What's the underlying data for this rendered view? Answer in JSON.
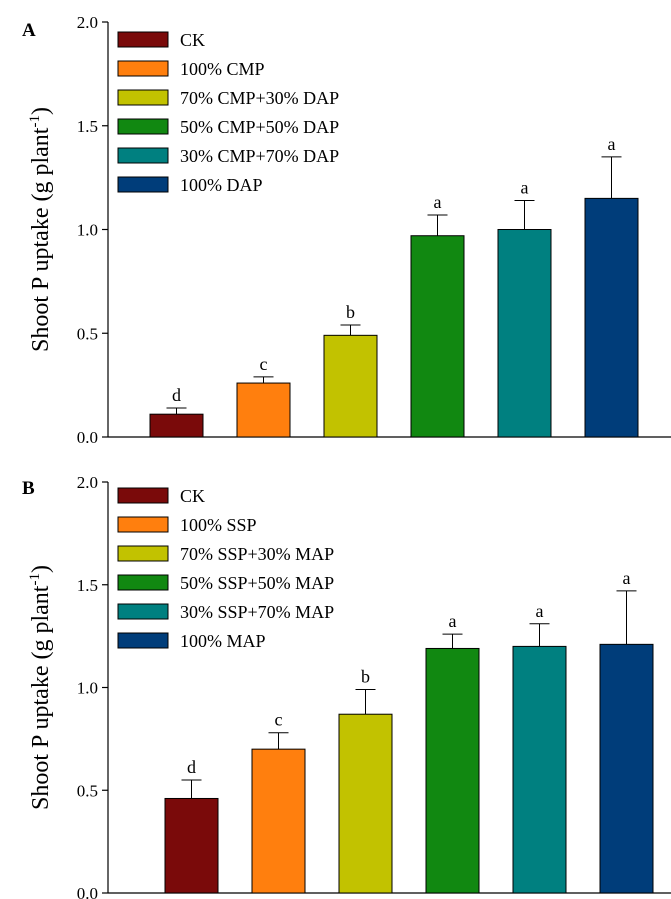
{
  "chart_data": [
    {
      "panel": "A",
      "type": "bar",
      "categories": [
        "CK",
        "100% CMP",
        "70% CMP+30% DAP",
        "50% CMP+50% DAP",
        "30% CMP+70% DAP",
        "100% DAP"
      ],
      "values": [
        0.11,
        0.26,
        0.49,
        0.97,
        1.0,
        1.15
      ],
      "errors": [
        0.03,
        0.03,
        0.05,
        0.1,
        0.14,
        0.2
      ],
      "letters": [
        "d",
        "c",
        "b",
        "a",
        "a",
        "a"
      ],
      "colors": [
        "#7a0a0a",
        "#ff7f0e",
        "#c2c200",
        "#118811",
        "#008080",
        "#003d7a"
      ],
      "ylabel": "Shoot P uptake (g plant",
      "ylabel_sup": "-1",
      "ylabel_tail": ")",
      "ylim": [
        0.0,
        2.0
      ],
      "yticks": [
        "0.0",
        "0.5",
        "1.0",
        "1.5",
        "2.0"
      ],
      "legend_position": "top-left"
    },
    {
      "panel": "B",
      "type": "bar",
      "categories": [
        "CK",
        "100% SSP",
        "70% SSP+30% MAP",
        "50% SSP+50% MAP",
        "30% SSP+70% MAP",
        "100% MAP"
      ],
      "values": [
        0.46,
        0.7,
        0.87,
        1.19,
        1.2,
        1.21
      ],
      "errors": [
        0.09,
        0.08,
        0.12,
        0.07,
        0.11,
        0.26
      ],
      "letters": [
        "d",
        "c",
        "b",
        "a",
        "a",
        "a"
      ],
      "colors": [
        "#7a0a0a",
        "#ff7f0e",
        "#c2c200",
        "#118811",
        "#008080",
        "#003d7a"
      ],
      "ylabel": "Shoot P uptake (g plant",
      "ylabel_sup": "-1",
      "ylabel_tail": ")",
      "ylim": [
        0.0,
        2.0
      ],
      "yticks": [
        "0.0",
        "0.5",
        "1.0",
        "1.5",
        "2.0"
      ],
      "legend_position": "top-left"
    }
  ]
}
